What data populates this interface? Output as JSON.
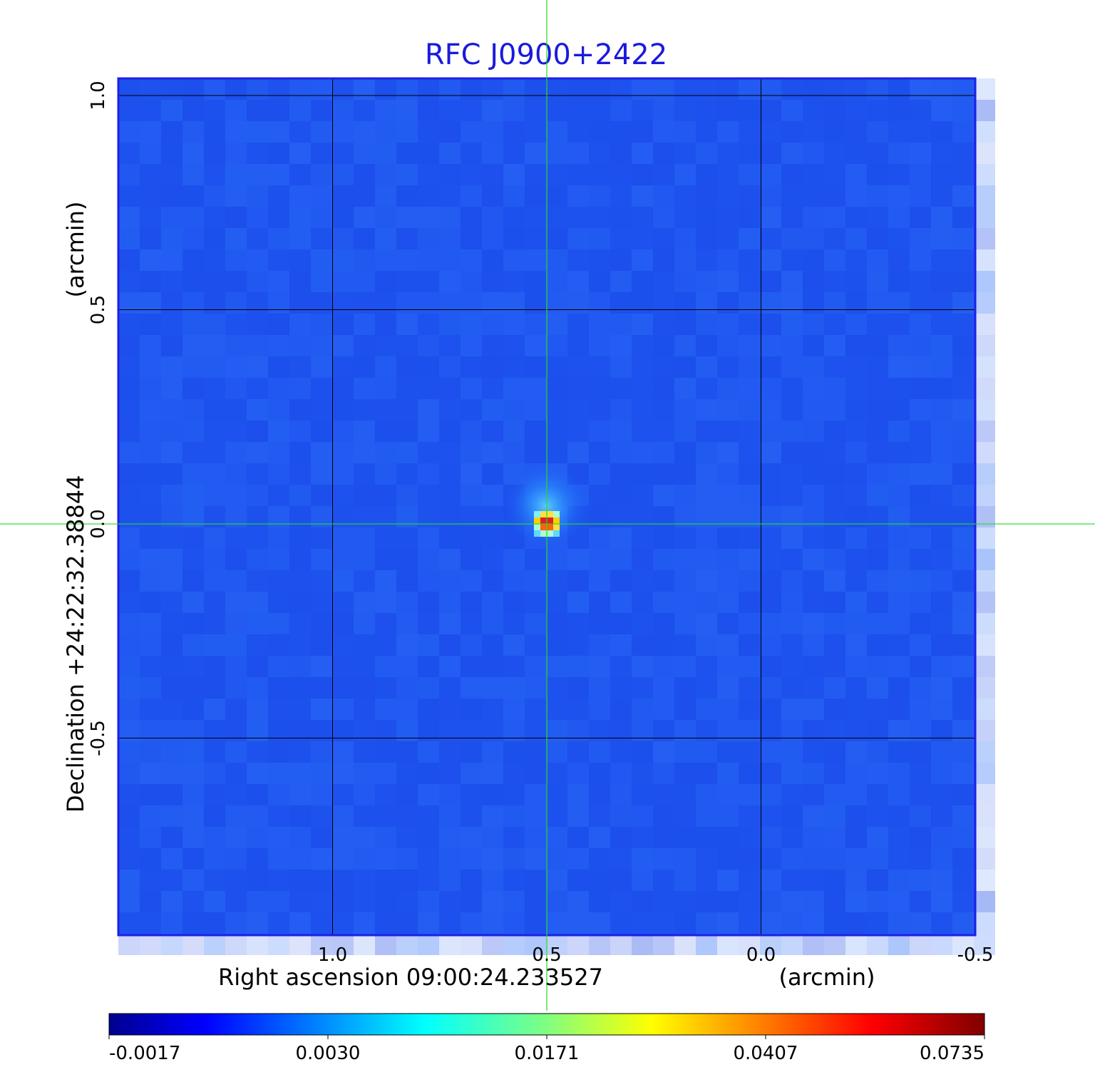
{
  "chart_data": {
    "type": "heatmap",
    "title": "RFC J0900+2422",
    "colormap": "jet",
    "xaxis": {
      "label_left": "Right ascension  09:00:24.233527",
      "label_right": "(arcmin)",
      "ticks": [
        "1.0",
        "0.5",
        "0.0",
        "-0.5"
      ],
      "tick_values": [
        1.0,
        0.5,
        0.0,
        -0.5
      ],
      "range": [
        1.5,
        -0.5
      ]
    },
    "yaxis": {
      "label_left": "Declination  +24:22:32.38844",
      "label_right": "(arcmin)",
      "ticks": [
        "1.0",
        "0.5",
        "0.0",
        "-0.5"
      ],
      "tick_values": [
        1.0,
        0.5,
        0.0,
        -0.5
      ],
      "range": [
        -0.96,
        1.04
      ]
    },
    "grid": true,
    "crosshair": {
      "x": 0.5,
      "y": 0.0,
      "color": "#22dd22"
    },
    "source": {
      "x": 0.5,
      "y": 0.0,
      "peak": 0.0735
    },
    "colorbar": {
      "orientation": "horizontal",
      "placement": "bottom",
      "ticks": [
        "-0.0017",
        "0.0030",
        "0.0171",
        "0.0407",
        "0.0735"
      ],
      "tick_values": [
        -0.0017,
        0.003,
        0.0171,
        0.0407,
        0.0735
      ]
    },
    "colors": {
      "background_field": "#1f55f0",
      "grid": "#000000",
      "title": "#1a1adc",
      "crosshair": "#22dd22"
    }
  }
}
